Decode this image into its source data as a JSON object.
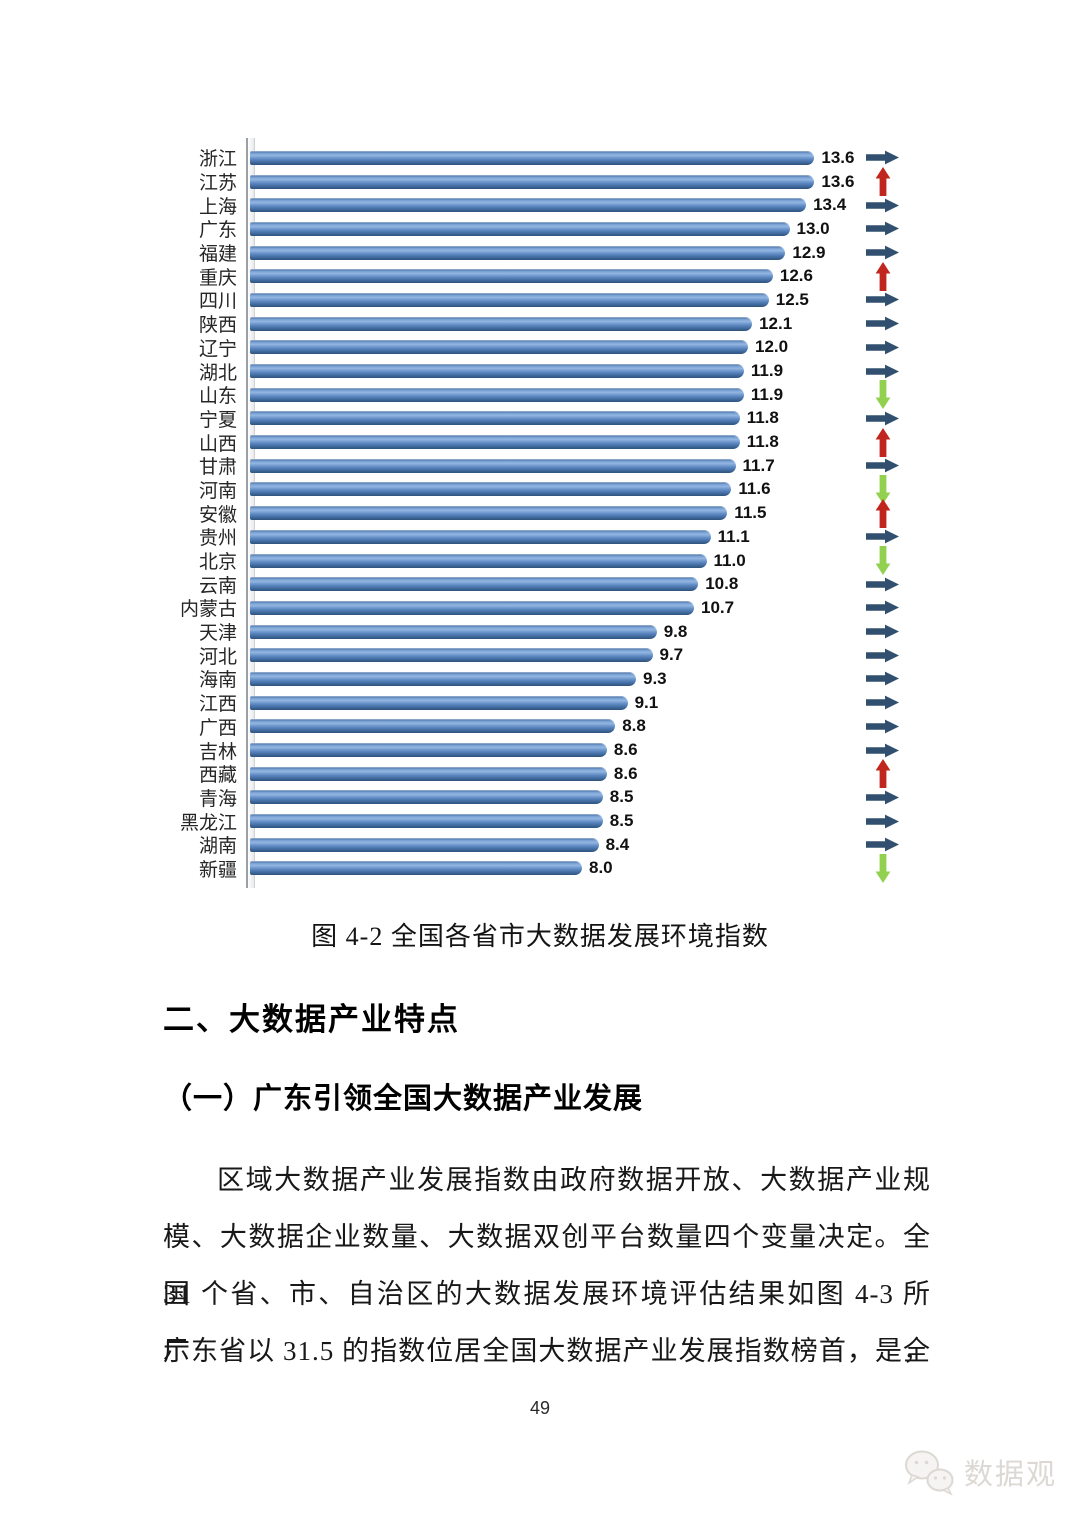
{
  "page": {
    "number": "49"
  },
  "caption": "图 4-2 全国各省市大数据发展环境指数",
  "sections": {
    "heading": "二、大数据产业特点",
    "subheading": "（一）广东引领全国大数据产业发展",
    "paragraph_lines": [
      "区域大数据产业发展指数由政府数据开放、大数据产业规",
      "模、大数据企业数量、大数据双创平台数量四个变量决定。全国",
      "31 个省、市、自治区的大数据发展环境评估结果如图 4-3 所示，",
      "广东省以 31.5 的指数位居全国大数据产业发展指数榜首，是全"
    ]
  },
  "watermark": {
    "text": "数据观",
    "logo": "wechat-icon"
  },
  "chart_data": {
    "type": "bar",
    "orientation": "horizontal",
    "title": "图 4-2 全国各省市大数据发展环境指数",
    "xlabel": "",
    "ylabel": "",
    "xlim": [
      0,
      14
    ],
    "grid": false,
    "legend": false,
    "value_labels_shown": true,
    "categories": [
      "浙江",
      "江苏",
      "上海",
      "广东",
      "福建",
      "重庆",
      "四川",
      "陕西",
      "辽宁",
      "湖北",
      "山东",
      "宁夏",
      "山西",
      "甘肃",
      "河南",
      "安徽",
      "贵州",
      "北京",
      "云南",
      "内蒙古",
      "天津",
      "河北",
      "海南",
      "江西",
      "广西",
      "吉林",
      "西藏",
      "青海",
      "黑龙江",
      "湖南",
      "新疆"
    ],
    "values": [
      13.6,
      13.6,
      13.4,
      13.0,
      12.9,
      12.6,
      12.5,
      12.1,
      12.0,
      11.9,
      11.9,
      11.8,
      11.8,
      11.7,
      11.6,
      11.5,
      11.1,
      11.0,
      10.8,
      10.7,
      9.8,
      9.7,
      9.3,
      9.1,
      8.8,
      8.6,
      8.6,
      8.5,
      8.5,
      8.4,
      8.0
    ],
    "trends": [
      "right",
      "up",
      "right",
      "right",
      "right",
      "up",
      "right",
      "right",
      "right",
      "right",
      "down",
      "right",
      "up",
      "right",
      "down",
      "up",
      "right",
      "down",
      "right",
      "right",
      "right",
      "right",
      "right",
      "right",
      "right",
      "right",
      "up",
      "right",
      "right",
      "right",
      "down"
    ],
    "colors": {
      "bar": "#4f81bd",
      "trend_right": "#31506f",
      "trend_up": "#c0261d",
      "trend_down": "#92d050"
    }
  }
}
